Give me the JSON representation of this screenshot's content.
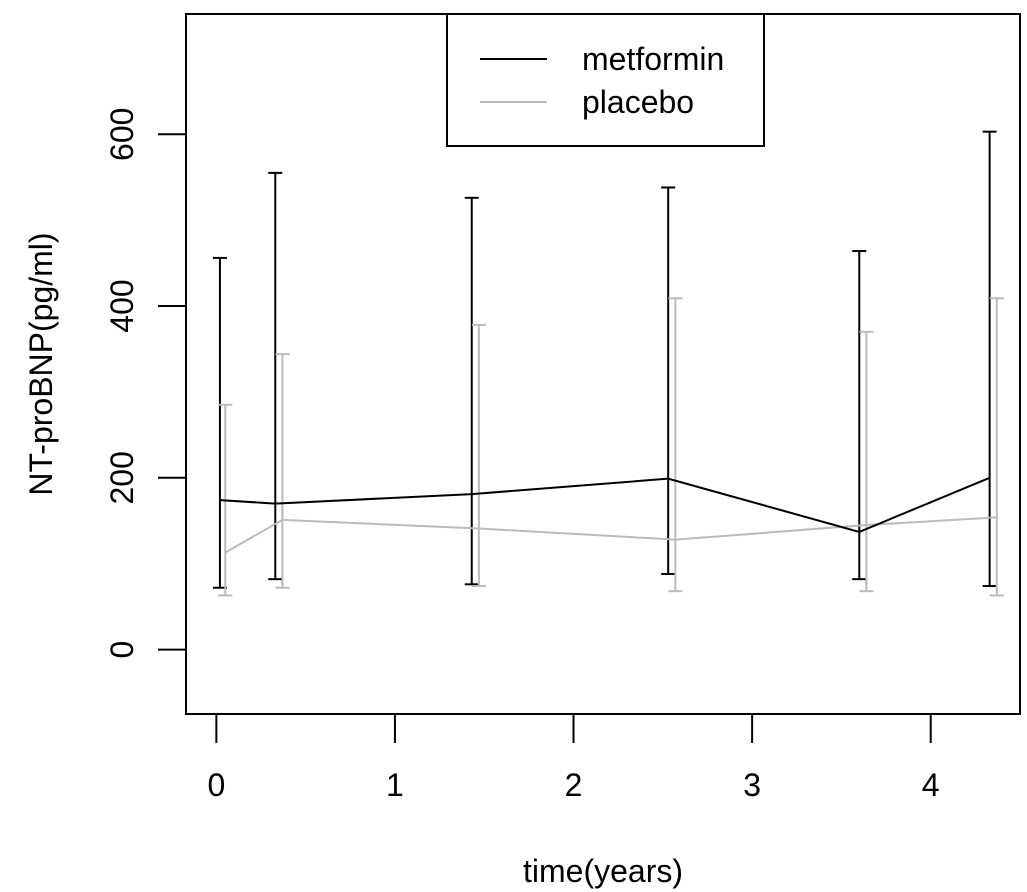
{
  "chart_data": {
    "type": "line",
    "xlabel": "time(years)",
    "ylabel": "NT-proBNP(pg/ml)",
    "xlim": [
      -0.17,
      4.5
    ],
    "ylim": [
      -75,
      740
    ],
    "xticks": [
      0,
      1,
      2,
      3,
      4
    ],
    "yticks": [
      0,
      200,
      400,
      600
    ],
    "grid": false,
    "legend": {
      "placement": "top-center"
    },
    "series": [
      {
        "name": "metformin",
        "color": "#000000",
        "x": [
          0.02,
          0.33,
          1.43,
          2.53,
          3.6,
          4.33
        ],
        "y": [
          174,
          170,
          181,
          199,
          137,
          200
        ],
        "lower": [
          72,
          82,
          76,
          88,
          82,
          74
        ],
        "upper": [
          456,
          555,
          526,
          538,
          464,
          603
        ]
      },
      {
        "name": "placebo",
        "color": "#bbbbbb",
        "x": [
          0.05,
          0.37,
          1.47,
          2.57,
          3.64,
          4.37
        ],
        "y": [
          113,
          151,
          141,
          128,
          145,
          154
        ],
        "lower": [
          63,
          72,
          74,
          68,
          68,
          63
        ],
        "upper": [
          285,
          344,
          378,
          409,
          370,
          409
        ]
      }
    ]
  }
}
